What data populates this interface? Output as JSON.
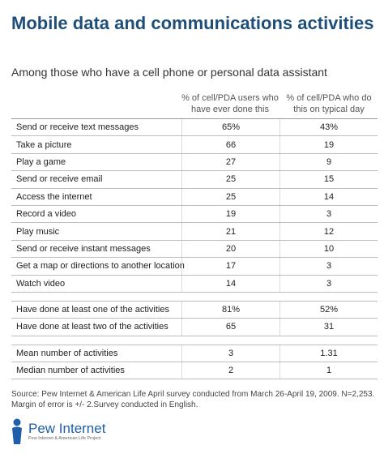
{
  "title": "Mobile data and communications activities",
  "subtitle": "Among those who have a cell phone or personal data assistant",
  "columns": {
    "ever": "% of cell/PDA users who have ever done this",
    "typical": "% of cell/PDA who do this on typical day"
  },
  "groups": [
    {
      "rows": [
        {
          "label": "Send or receive text messages",
          "ever": "65%",
          "typical": "43%"
        },
        {
          "label": "Take a picture",
          "ever": "66",
          "typical": "19"
        },
        {
          "label": "Play a game",
          "ever": "27",
          "typical": "9"
        },
        {
          "label": "Send or receive email",
          "ever": "25",
          "typical": "15"
        },
        {
          "label": "Access the internet",
          "ever": "25",
          "typical": "14"
        },
        {
          "label": "Record a video",
          "ever": "19",
          "typical": "3"
        },
        {
          "label": "Play music",
          "ever": "21",
          "typical": "12"
        },
        {
          "label": "Send or receive instant messages",
          "ever": "20",
          "typical": "10"
        },
        {
          "label": "Get a map or directions to another location",
          "ever": "17",
          "typical": "3"
        },
        {
          "label": "Watch video",
          "ever": "14",
          "typical": "3"
        }
      ]
    },
    {
      "rows": [
        {
          "label": "Have done at least one of the activities",
          "ever": "81%",
          "typical": "52%"
        },
        {
          "label": "Have done at least two of the activities",
          "ever": "65",
          "typical": "31"
        }
      ]
    },
    {
      "rows": [
        {
          "label": "Mean number of activities",
          "ever": "3",
          "typical": "1.31"
        },
        {
          "label": "Median number of activities",
          "ever": "2",
          "typical": "1"
        }
      ]
    }
  ],
  "source": "Source: Pew Internet & American Life April survey conducted from March 26-April 19, 2009. N=2,253. Margin of error is +/- 2.Survey conducted in English.",
  "logo": {
    "name": "Pew Internet",
    "tagline": "Pew Internet & American Life Project",
    "color": "#1f5ea8"
  }
}
